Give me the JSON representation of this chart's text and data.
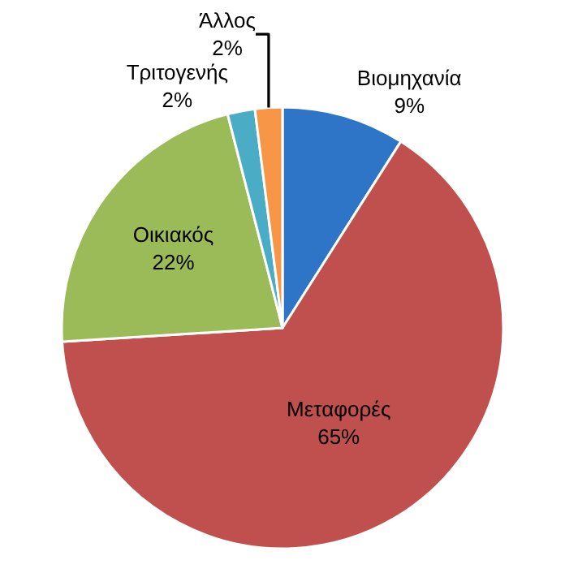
{
  "chart_data": {
    "type": "pie",
    "categories": [
      "Βιομηχανία",
      "Μεταφορές",
      "Οικιακός",
      "Τριτογενής",
      "Άλλος"
    ],
    "values": [
      9,
      65,
      22,
      2,
      2
    ],
    "value_labels": [
      "9%",
      "65%",
      "22%",
      "2%",
      "2%"
    ],
    "colors": [
      "#2e75c8",
      "#c0504d",
      "#9bbb59",
      "#4bacc6",
      "#f79646"
    ],
    "legend": false
  }
}
